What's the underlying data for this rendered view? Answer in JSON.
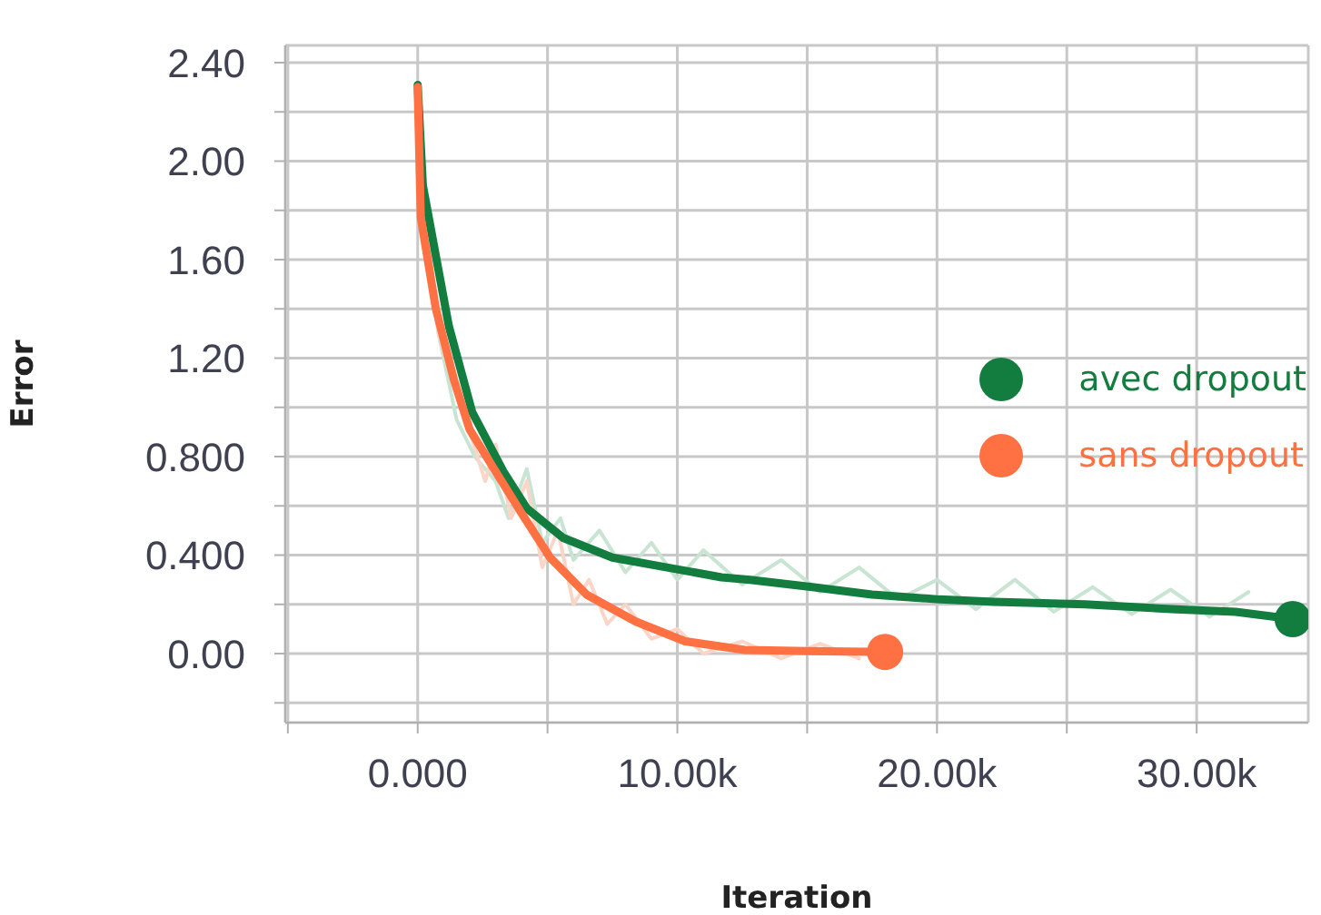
{
  "chart_data": {
    "type": "line",
    "xlabel": "Iteration",
    "ylabel": "Error",
    "xlim": [
      -5100,
      34300
    ],
    "ylim": [
      -0.28,
      2.47
    ],
    "xticks": [
      {
        "value": -5000,
        "label": null
      },
      {
        "value": 0,
        "label": "0.000"
      },
      {
        "value": 5000,
        "label": null
      },
      {
        "value": 10000,
        "label": "10.00k"
      },
      {
        "value": 15000,
        "label": null
      },
      {
        "value": 20000,
        "label": "20.00k"
      },
      {
        "value": 25000,
        "label": null
      },
      {
        "value": 30000,
        "label": "30.00k"
      }
    ],
    "yticks": [
      {
        "value": -0.2,
        "label": null
      },
      {
        "value": 0,
        "label": "0.00"
      },
      {
        "value": 0.2,
        "label": null
      },
      {
        "value": 0.4,
        "label": "0.400"
      },
      {
        "value": 0.6,
        "label": null
      },
      {
        "value": 0.8,
        "label": "0.800"
      },
      {
        "value": 1.0,
        "label": null
      },
      {
        "value": 1.2,
        "label": "1.20"
      },
      {
        "value": 1.4,
        "label": null
      },
      {
        "value": 1.6,
        "label": "1.60"
      },
      {
        "value": 1.8,
        "label": null
      },
      {
        "value": 2.0,
        "label": "2.00"
      },
      {
        "value": 2.2,
        "label": null
      },
      {
        "value": 2.4,
        "label": "2.40"
      }
    ],
    "grid": true,
    "legend": "right",
    "marker": "none",
    "line_style": "solid",
    "series": [
      {
        "color": "#c8e4d2",
        "x": [
          0,
          300,
          800,
          1500,
          2200,
          3000,
          3500,
          4200,
          4800,
          5500,
          6000,
          7000,
          8000,
          9000,
          10000,
          11000,
          12500,
          14000,
          15500,
          17000,
          18500,
          20000,
          21500,
          23000,
          24500,
          26000,
          27500,
          29000,
          30500,
          32000
        ],
        "values": [
          2.3,
          1.8,
          1.3,
          0.95,
          0.8,
          0.7,
          0.55,
          0.75,
          0.45,
          0.55,
          0.38,
          0.5,
          0.33,
          0.45,
          0.3,
          0.42,
          0.28,
          0.38,
          0.25,
          0.35,
          0.22,
          0.3,
          0.18,
          0.3,
          0.17,
          0.27,
          0.16,
          0.26,
          0.15,
          0.25
        ]
      },
      {
        "color": "#fbd6c8",
        "x": [
          0,
          300,
          800,
          1500,
          2000,
          2600,
          3000,
          3600,
          4200,
          4800,
          5400,
          6000,
          6600,
          7300,
          8000,
          9000,
          10000,
          11000,
          12500,
          14000,
          15500,
          17000
        ],
        "values": [
          2.28,
          1.7,
          1.3,
          1.05,
          0.9,
          0.7,
          0.85,
          0.55,
          0.7,
          0.35,
          0.5,
          0.2,
          0.3,
          0.12,
          0.2,
          0.06,
          0.1,
          0.0,
          0.05,
          -0.02,
          0.04,
          -0.02
        ]
      },
      {
        "name": "avec dropout",
        "color": "#137d3f",
        "x": [
          0,
          200,
          1200,
          2100,
          3300,
          4200,
          5600,
          7500,
          9600,
          11700,
          12800,
          15200,
          17500,
          20100,
          22200,
          25700,
          29200,
          31500,
          33700
        ],
        "values": [
          2.31,
          1.9,
          1.33,
          0.98,
          0.74,
          0.59,
          0.47,
          0.39,
          0.35,
          0.31,
          0.3,
          0.27,
          0.24,
          0.22,
          0.21,
          0.2,
          0.18,
          0.17,
          0.14
        ]
      },
      {
        "name": "sans dropout",
        "color": "#ff7043",
        "x": [
          0,
          120,
          700,
          1400,
          2000,
          3000,
          4000,
          5100,
          6500,
          8400,
          10300,
          12600,
          15000,
          18000
        ],
        "values": [
          2.3,
          1.77,
          1.4,
          1.11,
          0.91,
          0.74,
          0.57,
          0.39,
          0.24,
          0.13,
          0.05,
          0.015,
          0.01,
          0.007
        ]
      }
    ]
  }
}
